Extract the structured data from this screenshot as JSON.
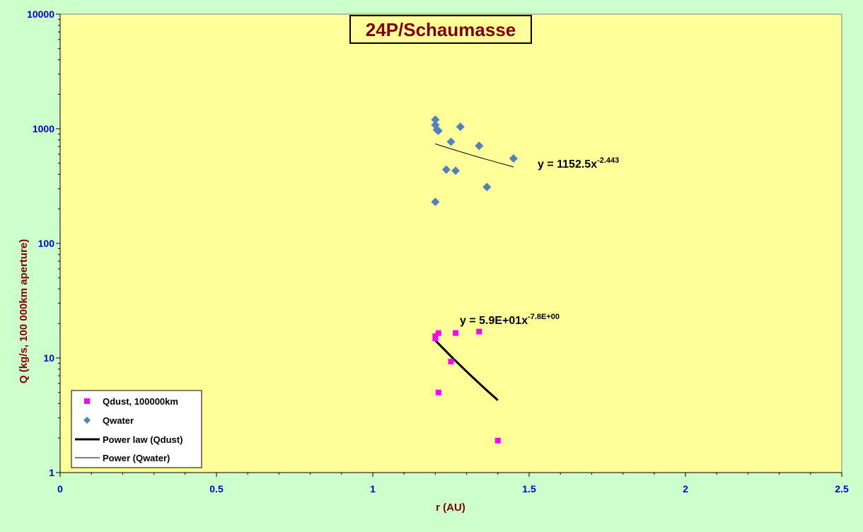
{
  "colors": {
    "page_bg": "#ccffcc",
    "plot_bg": "#ffff99",
    "dust": "#ff00ff",
    "water": "#4f81bd",
    "title": "#800000",
    "tick": "#0000cc"
  },
  "chart_data": {
    "type": "scatter",
    "title": "24P/Schaumasse",
    "xlabel": "r (AU)",
    "ylabel": "Q (kg/s, 100 000km aperture)",
    "xlim": [
      0,
      2.5
    ],
    "ylim": [
      1,
      10000
    ],
    "y_scale": "log",
    "grid": false,
    "legend_position": "bottom-left",
    "x_ticks": [
      0,
      0.5,
      1,
      1.5,
      2,
      2.5
    ],
    "x_tick_labels": [
      "0",
      "0.5",
      "1",
      "1.5",
      "2",
      "2.5"
    ],
    "y_ticks": [
      1,
      10,
      100,
      1000,
      10000
    ],
    "y_tick_labels": [
      "1",
      "10",
      "100",
      "1000",
      "10000"
    ],
    "series": [
      {
        "name": "Qdust, 100000km",
        "marker": "square",
        "color": "#ff00ff",
        "points": [
          [
            1.2,
            15.5
          ],
          [
            1.2,
            14.8
          ],
          [
            1.21,
            16.5
          ],
          [
            1.21,
            5.0
          ],
          [
            1.25,
            9.3
          ],
          [
            1.265,
            16.5
          ],
          [
            1.34,
            17.0
          ],
          [
            1.4,
            1.9
          ]
        ]
      },
      {
        "name": "Qwater",
        "marker": "diamond",
        "color": "#4f81bd",
        "points": [
          [
            1.2,
            1200
          ],
          [
            1.2,
            1080
          ],
          [
            1.205,
            980
          ],
          [
            1.21,
            960
          ],
          [
            1.2,
            230
          ],
          [
            1.235,
            440
          ],
          [
            1.25,
            770
          ],
          [
            1.265,
            430
          ],
          [
            1.28,
            1040
          ],
          [
            1.34,
            710
          ],
          [
            1.365,
            310
          ],
          [
            1.45,
            550
          ]
        ]
      }
    ],
    "trendlines": [
      {
        "name": "Power law (Qdust)",
        "series": "Qdust, 100000km",
        "type": "power",
        "a": 59,
        "b": -7.8,
        "x_range": [
          1.2,
          1.4
        ],
        "style": "thick",
        "color": "#000000",
        "equation": "y = 5.9E+01x",
        "exponent": "-7.8E+00"
      },
      {
        "name": "Power (Qwater)",
        "series": "Qwater",
        "type": "power",
        "a": 1152.5,
        "b": -2.443,
        "x_range": [
          1.2,
          1.45
        ],
        "style": "thin",
        "color": "#000000",
        "equation": "y = 1152.5x",
        "exponent": "-2.443"
      }
    ]
  }
}
